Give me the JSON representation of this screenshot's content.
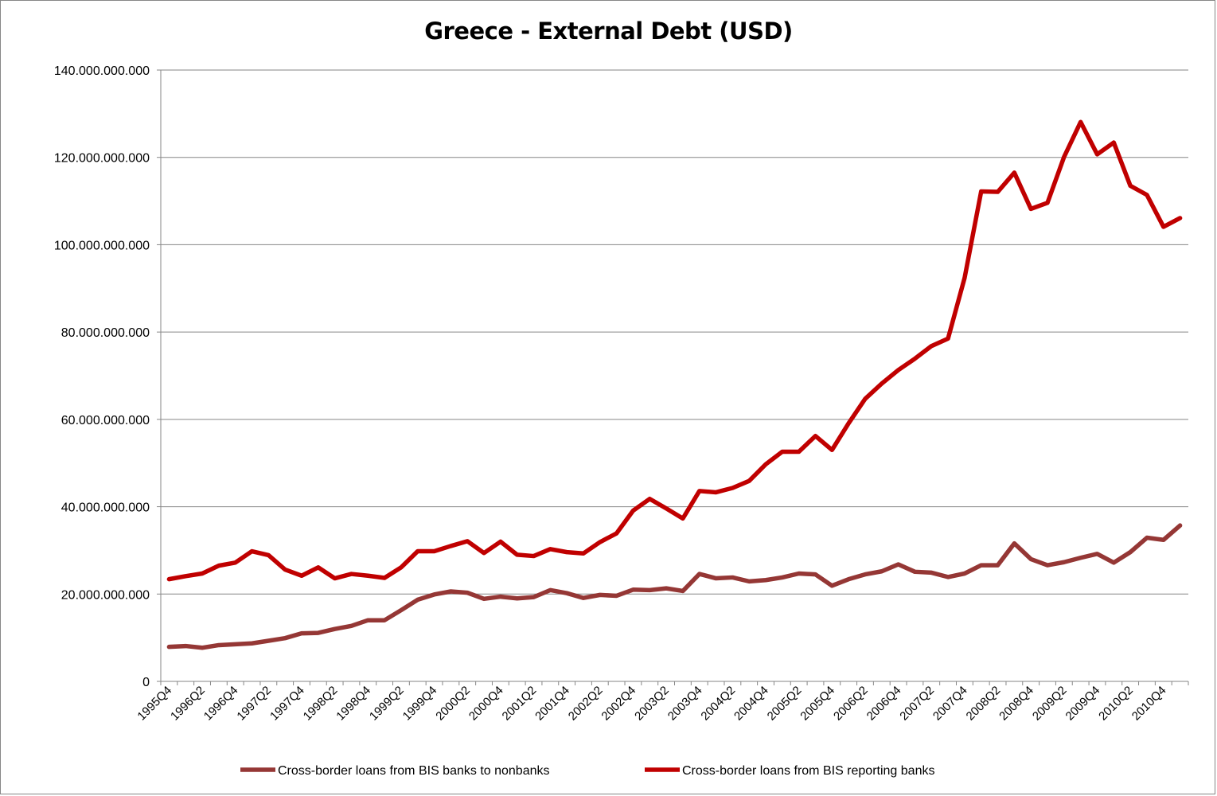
{
  "chart_data": {
    "type": "line",
    "title": "Greece - External Debt (USD)",
    "xlabel": "",
    "ylabel": "",
    "ylim": [
      0,
      140000000000
    ],
    "y_ticks": [
      0,
      20000000000,
      40000000000,
      60000000000,
      80000000000,
      100000000000,
      120000000000,
      140000000000
    ],
    "y_tick_labels": [
      "0",
      "20.000.000.000",
      "40.000.000.000",
      "60.000.000.000",
      "80.000.000.000",
      "100.000.000.000",
      "120.000.000.000",
      "140.000.000.000"
    ],
    "grid": true,
    "legend_position": "bottom",
    "x": [
      "1995Q4",
      "1996Q1",
      "1996Q2",
      "1996Q3",
      "1996Q4",
      "1997Q1",
      "1997Q2",
      "1997Q3",
      "1997Q4",
      "1998Q1",
      "1998Q2",
      "1998Q3",
      "1998Q4",
      "1999Q1",
      "1999Q2",
      "1999Q3",
      "1999Q4",
      "2000Q1",
      "2000Q2",
      "2000Q3",
      "2000Q4",
      "2001Q1",
      "2001Q2",
      "2001Q3",
      "2001Q4",
      "2002Q1",
      "2002Q2",
      "2002Q3",
      "2002Q4",
      "2003Q1",
      "2003Q2",
      "2003Q3",
      "2003Q4",
      "2004Q1",
      "2004Q2",
      "2004Q3",
      "2004Q4",
      "2005Q1",
      "2005Q2",
      "2005Q3",
      "2005Q4",
      "2006Q1",
      "2006Q2",
      "2006Q3",
      "2006Q4",
      "2007Q1",
      "2007Q2",
      "2007Q3",
      "2007Q4",
      "2008Q1",
      "2008Q2",
      "2008Q3",
      "2008Q4",
      "2009Q1",
      "2009Q2",
      "2009Q3",
      "2009Q4",
      "2010Q1",
      "2010Q2",
      "2010Q3",
      "2010Q4",
      "2011Q1"
    ],
    "x_tick_labels": [
      "1995Q4",
      "1996Q2",
      "1996Q4",
      "1997Q2",
      "1997Q4",
      "1998Q2",
      "1998Q4",
      "1999Q2",
      "1999Q4",
      "2000Q2",
      "2000Q4",
      "2001Q2",
      "2001Q4",
      "2002Q2",
      "2002Q4",
      "2003Q2",
      "2003Q4",
      "2004Q2",
      "2004Q4",
      "2005Q2",
      "2005Q4",
      "2006Q2",
      "2006Q4",
      "2007Q2",
      "2007Q4",
      "2008Q2",
      "2008Q4",
      "2009Q2",
      "2009Q4",
      "2010Q2",
      "2010Q4"
    ],
    "series": [
      {
        "name": "Cross-border loans from BIS banks to nonbanks",
        "color": "#953735",
        "values": [
          7900000000,
          8100000000,
          7700000000,
          8300000000,
          8500000000,
          8700000000,
          9300000000,
          9900000000,
          11000000000,
          11100000000,
          12000000000,
          12700000000,
          14000000000,
          14000000000,
          16300000000,
          18700000000,
          19900000000,
          20600000000,
          20300000000,
          18900000000,
          19400000000,
          19000000000,
          19300000000,
          20900000000,
          20200000000,
          19100000000,
          19800000000,
          19600000000,
          21000000000,
          20900000000,
          21300000000,
          20700000000,
          24600000000,
          23600000000,
          23800000000,
          22900000000,
          23200000000,
          23800000000,
          24700000000,
          24500000000,
          21900000000,
          23400000000,
          24500000000,
          25200000000,
          26800000000,
          25100000000,
          24900000000,
          23900000000,
          24700000000,
          26600000000,
          26600000000,
          31600000000,
          28000000000,
          26600000000,
          27300000000,
          28300000000,
          29200000000,
          27200000000,
          29600000000,
          32900000000,
          32400000000,
          35700000000
        ]
      },
      {
        "name": "Cross-border loans from BIS reporting banks",
        "color": "#c00000",
        "values": [
          23400000000,
          24100000000,
          24700000000,
          26500000000,
          27200000000,
          29800000000,
          28900000000,
          25600000000,
          24200000000,
          26100000000,
          23600000000,
          24600000000,
          24200000000,
          23700000000,
          26100000000,
          29800000000,
          29800000000,
          31000000000,
          32100000000,
          29400000000,
          32000000000,
          29000000000,
          28700000000,
          30300000000,
          29600000000,
          29300000000,
          31900000000,
          33900000000,
          39100000000,
          41800000000,
          39600000000,
          37300000000,
          43600000000,
          43300000000,
          44300000000,
          45900000000,
          49700000000,
          52600000000,
          52600000000,
          56200000000,
          53000000000,
          59100000000,
          64700000000,
          68200000000,
          71300000000,
          73900000000,
          76800000000,
          78500000000,
          92400000000,
          112200000000,
          112100000000,
          116500000000,
          108200000000,
          109600000000,
          120100000000,
          128100000000,
          120700000000,
          123400000000,
          113500000000,
          111400000000,
          104100000000,
          106100000000
        ]
      }
    ]
  }
}
